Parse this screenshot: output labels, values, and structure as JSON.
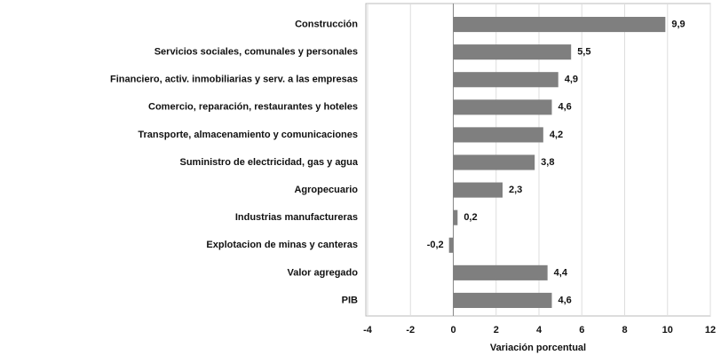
{
  "chart_data": {
    "type": "bar",
    "orientation": "horizontal",
    "categories": [
      "Construcción",
      "Servicios sociales, comunales y personales",
      "Financiero, activ. inmobiliarias y serv. a las empresas",
      "Comercio, reparación, restaurantes y hoteles",
      "Transporte, almacenamiento y comunicaciones",
      "Suministro de electricidad, gas y agua",
      "Agropecuario",
      "Industrias manufactureras",
      "Explotacion de minas y canteras",
      "Valor agregado",
      "PIB"
    ],
    "values": [
      9.9,
      5.5,
      4.9,
      4.6,
      4.2,
      3.8,
      2.3,
      0.2,
      -0.2,
      4.4,
      4.6
    ],
    "value_labels": [
      "9,9",
      "5,5",
      "4,9",
      "4,6",
      "4,2",
      "3,8",
      "2,3",
      "0,2",
      "-0,2",
      "4,4",
      "4,6"
    ],
    "color": "#7f7f7f",
    "xlabel": "Variación porcentual",
    "xlim": [
      -4,
      12
    ],
    "xticks": [
      -4,
      -2,
      0,
      2,
      4,
      6,
      8,
      10,
      12
    ],
    "grid": true
  }
}
